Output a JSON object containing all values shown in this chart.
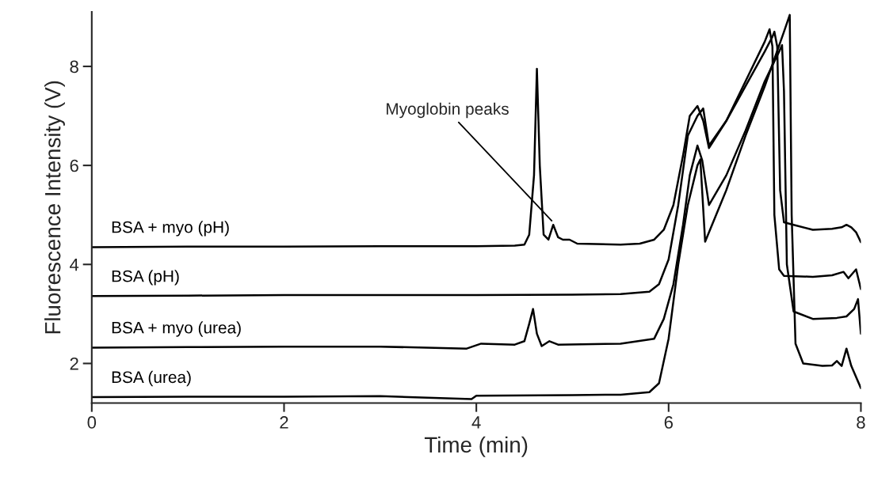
{
  "chart_data": {
    "type": "line",
    "xlabel": "Time (min)",
    "ylabel": "Fluorescence Intensity (V)",
    "xlim": [
      0,
      8
    ],
    "ylim": [
      1.2,
      9.1
    ],
    "xticks": [
      0,
      2,
      4,
      6,
      8
    ],
    "yticks": [
      2,
      4,
      6,
      8
    ],
    "grid": false,
    "legend": false,
    "annotations": [
      {
        "text": "Myoglobin peaks",
        "x": 4.8,
        "y": 4.85
      }
    ],
    "series": [
      {
        "name": "BSA + myo (pH)",
        "color": "#000000",
        "x": [
          0,
          1,
          2,
          3,
          4,
          4.4,
          4.5,
          4.55,
          4.6,
          4.63,
          4.66,
          4.7,
          4.75,
          4.8,
          4.85,
          4.9,
          4.97,
          5.05,
          5.5,
          5.7,
          5.85,
          5.95,
          6.05,
          6.15,
          6.22,
          6.3,
          6.36,
          6.42,
          6.6,
          6.8,
          7.0,
          7.08,
          7.1,
          7.13,
          7.16,
          7.2,
          7.3,
          7.5,
          7.7,
          7.8,
          7.85,
          7.9,
          7.95,
          8.0
        ],
        "values": [
          4.35,
          4.36,
          4.36,
          4.37,
          4.37,
          4.38,
          4.4,
          4.6,
          5.8,
          7.95,
          6.0,
          4.6,
          4.5,
          4.8,
          4.55,
          4.5,
          4.5,
          4.42,
          4.4,
          4.42,
          4.5,
          4.7,
          5.2,
          6.2,
          7.0,
          7.2,
          6.9,
          6.35,
          6.9,
          7.6,
          8.3,
          8.6,
          8.7,
          8.4,
          5.5,
          4.85,
          4.8,
          4.7,
          4.72,
          4.75,
          4.8,
          4.75,
          4.65,
          4.45
        ]
      },
      {
        "name": "BSA (pH)",
        "color": "#000000",
        "x": [
          0,
          1,
          2,
          3,
          4,
          5,
          5.5,
          5.8,
          5.9,
          6.0,
          6.1,
          6.2,
          6.3,
          6.36,
          6.42,
          6.6,
          6.8,
          7.0,
          7.05,
          7.08,
          7.1,
          7.15,
          7.2,
          7.5,
          7.7,
          7.82,
          7.87,
          7.95,
          8.0
        ],
        "values": [
          3.36,
          3.37,
          3.38,
          3.38,
          3.38,
          3.39,
          3.4,
          3.45,
          3.6,
          4.1,
          5.2,
          6.6,
          7.0,
          7.15,
          6.4,
          6.9,
          7.7,
          8.5,
          8.75,
          8.4,
          5.0,
          3.9,
          3.77,
          3.75,
          3.78,
          3.85,
          3.72,
          3.9,
          3.5
        ]
      },
      {
        "name": "BSA + myo (urea)",
        "color": "#000000",
        "x": [
          0,
          1,
          2,
          3,
          3.9,
          4.05,
          4.4,
          4.5,
          4.55,
          4.59,
          4.63,
          4.68,
          4.76,
          4.85,
          5.5,
          5.85,
          5.95,
          6.05,
          6.15,
          6.22,
          6.3,
          6.35,
          6.42,
          6.6,
          6.8,
          7.0,
          7.15,
          7.18,
          7.2,
          7.23,
          7.3,
          7.5,
          7.75,
          7.85,
          7.93,
          7.97,
          8.0
        ],
        "values": [
          2.32,
          2.33,
          2.34,
          2.34,
          2.3,
          2.4,
          2.38,
          2.45,
          2.8,
          3.1,
          2.6,
          2.35,
          2.45,
          2.38,
          2.4,
          2.5,
          2.9,
          3.6,
          4.8,
          5.8,
          6.4,
          6.1,
          5.2,
          5.8,
          6.7,
          7.7,
          8.3,
          8.43,
          7.5,
          4.0,
          3.05,
          2.9,
          2.92,
          2.95,
          3.1,
          3.3,
          2.6
        ]
      },
      {
        "name": "BSA (urea)",
        "color": "#000000",
        "x": [
          0,
          1,
          2,
          3,
          3.95,
          4,
          5,
          5.5,
          5.8,
          5.9,
          6.0,
          6.1,
          6.2,
          6.3,
          6.33,
          6.38,
          6.6,
          6.8,
          7.0,
          7.2,
          7.26,
          7.28,
          7.32,
          7.4,
          7.6,
          7.7,
          7.75,
          7.8,
          7.85,
          7.9,
          8.0
        ],
        "values": [
          1.32,
          1.33,
          1.33,
          1.34,
          1.28,
          1.35,
          1.36,
          1.37,
          1.42,
          1.6,
          2.5,
          4.0,
          5.2,
          6.0,
          6.12,
          4.46,
          5.5,
          6.6,
          7.6,
          8.7,
          9.04,
          5.0,
          2.4,
          2.0,
          1.95,
          1.96,
          2.05,
          1.95,
          2.3,
          1.95,
          1.5
        ]
      }
    ]
  }
}
